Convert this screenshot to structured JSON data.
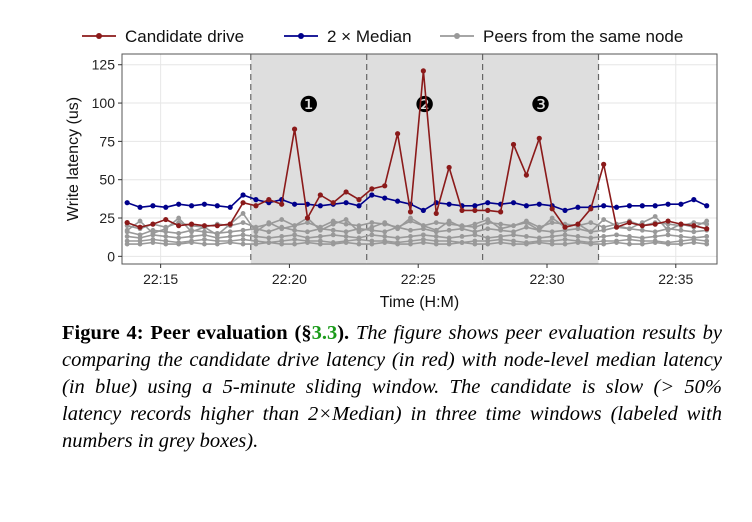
{
  "chart_data": {
    "type": "line",
    "xlabel": "Time (H:M)",
    "ylabel": "Write latency (us)",
    "xlim": [
      13.5,
      36.6
    ],
    "ylim": [
      -5,
      132
    ],
    "x_ticks": [
      15,
      20,
      25,
      30,
      35
    ],
    "x_tick_labels": [
      "22:15",
      "22:20",
      "22:25",
      "22:30",
      "22:35"
    ],
    "y_ticks": [
      0,
      25,
      50,
      75,
      100,
      125
    ],
    "y_tick_labels": [
      "0",
      "25",
      "50",
      "75",
      "100",
      "125"
    ],
    "grid": true,
    "legend_position": "top",
    "windows": [
      {
        "label": "❶",
        "x_start": 18.5,
        "x_end": 23.0
      },
      {
        "label": "❷",
        "x_start": 23.0,
        "x_end": 27.5
      },
      {
        "label": "❸",
        "x_start": 27.5,
        "x_end": 32.0
      }
    ],
    "x": [
      13.7,
      14.2,
      14.7,
      15.2,
      15.7,
      16.2,
      16.7,
      17.2,
      17.7,
      18.2,
      18.7,
      19.2,
      19.7,
      20.2,
      20.7,
      21.2,
      21.7,
      22.2,
      22.7,
      23.2,
      23.7,
      24.2,
      24.7,
      25.2,
      25.7,
      26.2,
      26.7,
      27.2,
      27.7,
      28.2,
      28.7,
      29.2,
      29.7,
      30.2,
      30.7,
      31.2,
      31.7,
      32.2,
      32.7,
      33.2,
      33.7,
      34.2,
      34.7,
      35.2,
      35.7,
      36.2
    ],
    "series": [
      {
        "name": "Candidate drive",
        "color": "#8b1a1a",
        "values": [
          22,
          19,
          21,
          24,
          20,
          21,
          20,
          20,
          21,
          35,
          33,
          37,
          34,
          83,
          25,
          40,
          35,
          42,
          37,
          44,
          46,
          80,
          29,
          121,
          28,
          58,
          30,
          30,
          30,
          29,
          73,
          53,
          77,
          31,
          19,
          21,
          31,
          60,
          19,
          22,
          20,
          21,
          23,
          21,
          20,
          18
        ]
      },
      {
        "name": "2 × Median",
        "color": "#00008b",
        "values": [
          35,
          32,
          33,
          32,
          34,
          33,
          34,
          33,
          32,
          40,
          37,
          35,
          37,
          34,
          34,
          33,
          34,
          35,
          33,
          40,
          38,
          36,
          34,
          30,
          35,
          34,
          33,
          33,
          35,
          34,
          35,
          33,
          34,
          33,
          30,
          32,
          32,
          33,
          32,
          33,
          33,
          33,
          34,
          34,
          37,
          33
        ]
      }
    ],
    "peer_series": {
      "name": "Peers from the same node",
      "color": "#999999",
      "lines": [
        [
          16,
          14,
          17,
          16,
          15,
          17,
          16,
          15,
          16,
          17,
          18,
          16,
          19,
          17,
          16,
          18,
          17,
          16,
          18,
          17,
          16,
          19,
          17,
          18,
          16,
          17,
          18,
          16,
          18,
          17,
          16,
          19,
          17,
          16,
          17,
          18,
          16,
          17,
          19,
          18,
          17,
          16,
          18,
          17,
          16,
          17
        ],
        [
          13,
          12,
          14,
          13,
          12,
          13,
          14,
          12,
          13,
          14,
          13,
          12,
          13,
          14,
          12,
          13,
          14,
          13,
          12,
          14,
          13,
          12,
          13,
          14,
          13,
          12,
          13,
          14,
          12,
          13,
          14,
          13,
          12,
          13,
          14,
          13,
          12,
          13,
          14,
          13,
          12,
          13,
          14,
          13,
          12,
          13
        ],
        [
          10,
          10,
          11,
          10,
          9,
          10,
          11,
          10,
          10,
          11,
          10,
          9,
          10,
          11,
          10,
          10,
          9,
          10,
          11,
          10,
          10,
          9,
          10,
          11,
          10,
          10,
          9,
          10,
          10,
          11,
          10,
          9,
          10,
          10,
          11,
          10,
          9,
          10,
          10,
          11,
          10,
          10,
          9,
          10,
          11,
          10
        ],
        [
          20,
          18,
          21,
          19,
          22,
          20,
          19,
          21,
          20,
          22,
          19,
          21,
          24,
          20,
          22,
          19,
          23,
          21,
          20,
          22,
          21,
          19,
          23,
          20,
          22,
          21,
          20,
          19,
          22,
          21,
          20,
          23,
          19,
          22,
          21,
          20,
          22,
          19,
          21,
          23,
          20,
          22,
          21,
          20,
          22,
          21
        ],
        [
          17,
          23,
          15,
          18,
          25,
          16,
          19,
          14,
          21,
          28,
          16,
          22,
          18,
          20,
          25,
          17,
          21,
          24,
          16,
          19,
          22,
          18,
          25,
          20,
          17,
          23,
          19,
          21,
          24,
          18,
          20,
          22,
          17,
          25,
          19,
          21,
          16,
          24,
          20,
          18,
          22,
          26,
          17,
          21,
          19,
          23
        ],
        [
          8,
          8,
          9,
          8,
          8,
          9,
          8,
          8,
          9,
          8,
          8,
          9,
          8,
          8,
          9,
          8,
          8,
          9,
          8,
          8,
          9,
          8,
          8,
          9,
          8,
          8,
          9,
          8,
          8,
          9,
          8,
          8,
          9,
          8,
          8,
          9,
          8,
          8,
          9,
          8,
          8,
          9,
          8,
          8,
          9,
          8
        ]
      ]
    }
  },
  "caption": {
    "lead": "Figure 4: Peer evaluation (§",
    "ref": "3.3",
    "lead_end": ").",
    "body": " The figure shows peer evaluation results by comparing the candidate drive latency (in red) with node-level median latency (in blue) using a 5-minute sliding window. The candidate is slow (> 50% latency records higher than 2×Median) in three time windows (labeled with numbers in grey boxes)."
  }
}
